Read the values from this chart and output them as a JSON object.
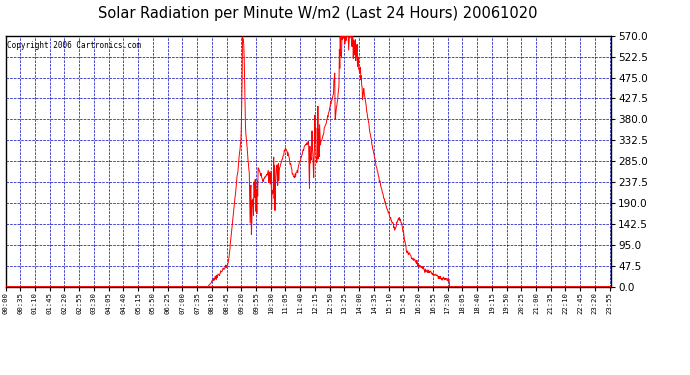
{
  "title": "Solar Radiation per Minute W/m2 (Last 24 Hours) 20061020",
  "copyright_text": "Copyright 2006 Cartronics.com",
  "bg_color": "#FFFFFF",
  "plot_bg_color": "#FFFFFF",
  "line_color": "#FF0000",
  "grid_color": "#0000BB",
  "axis_label_color": "#000000",
  "title_color": "#000000",
  "ylim": [
    0.0,
    570.0
  ],
  "yticks": [
    0.0,
    47.5,
    95.0,
    142.5,
    190.0,
    237.5,
    285.0,
    332.5,
    380.0,
    427.5,
    475.0,
    522.5,
    570.0
  ],
  "num_points": 1440,
  "x_tick_interval": 35,
  "border_color": "#000000"
}
